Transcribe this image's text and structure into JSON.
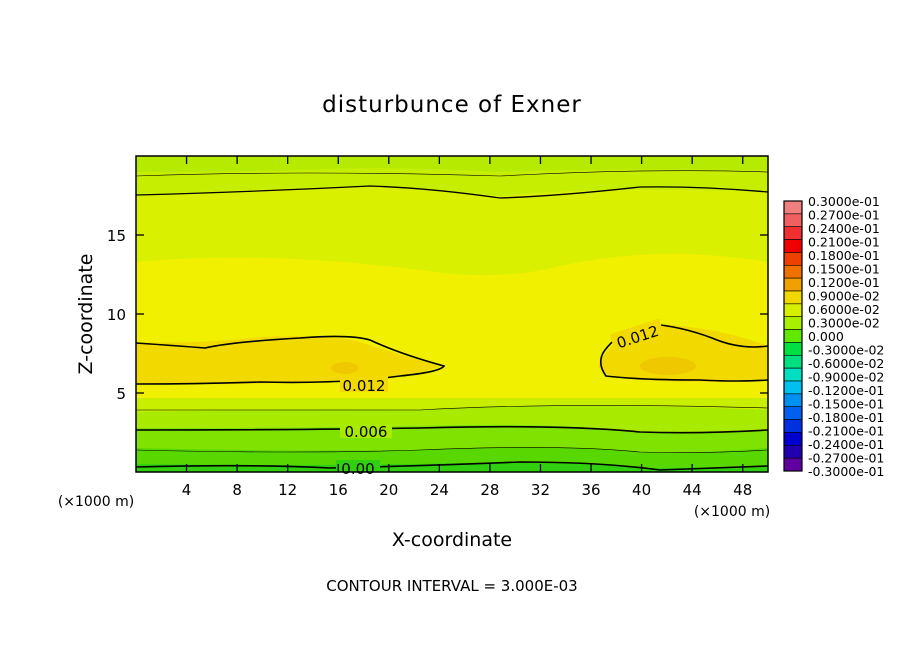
{
  "chart_data": {
    "type": "heatmap",
    "title": "disturbunce of Exner",
    "xlabel": "X-coordinate",
    "ylabel": "Z-coordinate",
    "x_unit_left": "(×1000 m)",
    "x_unit_right": "(×1000 m)",
    "footer": "CONTOUR INTERVAL = 3.000E-03",
    "xlim": [
      0,
      50
    ],
    "ylim": [
      0,
      20
    ],
    "x_ticks": [
      4,
      8,
      12,
      16,
      20,
      24,
      28,
      32,
      36,
      40,
      44,
      48
    ],
    "x_tick_labels": [
      "4",
      "8",
      "12",
      "16",
      "20",
      "24",
      "28",
      "32",
      "36",
      "40",
      "44",
      "48"
    ],
    "y_ticks": [
      5,
      10,
      15
    ],
    "y_tick_labels": [
      "5",
      "10",
      "15"
    ],
    "contour_labels": [
      {
        "text": "0.012",
        "x": 17,
        "z": 5.8
      },
      {
        "text": "0.012",
        "x": 41,
        "z": 8.7
      },
      {
        "text": "0.006",
        "x": 17,
        "z": 2.6
      },
      {
        "text": "0.00",
        "x": 16.5,
        "z": 0.25
      }
    ],
    "colorbar": {
      "labels": [
        "0.3000e-01",
        "0.2700e-01",
        "0.2400e-01",
        "0.2100e-01",
        "0.1800e-01",
        "0.1500e-01",
        "0.1200e-01",
        "0.9000e-02",
        "0.6000e-02",
        "0.3000e-02",
        "0.000",
        "-0.3000e-02",
        "-0.6000e-02",
        "-0.9000e-02",
        "-0.1200e-01",
        "-0.1500e-01",
        "-0.1800e-01",
        "-0.2100e-01",
        "-0.2400e-01",
        "-0.2700e-01",
        "-0.3000e-01"
      ],
      "colors": [
        "#f08080",
        "#f06060",
        "#f03030",
        "#f00000",
        "#f04000",
        "#f07000",
        "#f0a000",
        "#f0d800",
        "#d8f000",
        "#a8f000",
        "#60e800",
        "#00e040",
        "#00e080",
        "#00e0c0",
        "#00c0f0",
        "#0090f0",
        "#0060f0",
        "#0030e0",
        "#0000d0",
        "#2000b0",
        "#6000a0"
      ]
    },
    "levels_sample": [
      {
        "z": 0.0,
        "value": 0.0
      },
      {
        "z": 2.5,
        "value": 0.006
      },
      {
        "z": 6.8,
        "value": 0.014
      },
      {
        "z": 12.0,
        "value": 0.01
      },
      {
        "z": 18.0,
        "value": 0.005
      },
      {
        "z": 20.0,
        "value": 0.004
      }
    ]
  }
}
